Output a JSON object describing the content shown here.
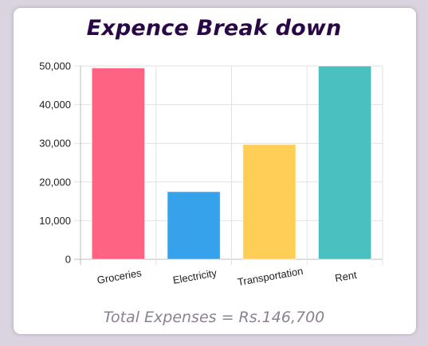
{
  "title": "Expence Break down",
  "footer": "Total Expenses = Rs.146,700",
  "chart_data": {
    "type": "bar",
    "title": "Expence Break down",
    "categories": [
      "Groceries",
      "Electricity",
      "Transportation",
      "Rent"
    ],
    "values": [
      49500,
      17500,
      29700,
      50000
    ],
    "colors": [
      "#ff6384",
      "#36a2eb",
      "#ffce56",
      "#4bc0c0"
    ],
    "ylim": [
      0,
      50000
    ],
    "yticks": [
      0,
      10000,
      20000,
      30000,
      40000,
      50000
    ],
    "ytick_labels": [
      "0",
      "10,000",
      "20,000",
      "30,000",
      "40,000",
      "50,000"
    ],
    "grid": true,
    "legend": "none"
  }
}
